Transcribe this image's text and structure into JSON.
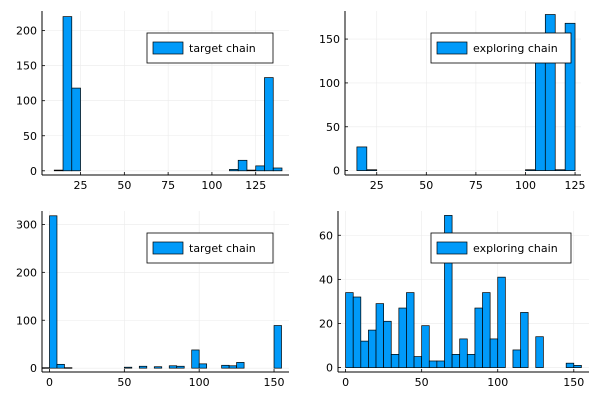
{
  "colors": {
    "bar_fill": "#009af9",
    "bar_stroke": "#000000",
    "grid": "#ebebeb",
    "axis": "#000000"
  },
  "chart_data": [
    {
      "type": "bar",
      "title": "",
      "xlabel": "",
      "ylabel": "",
      "legend": {
        "entries": [
          "target chain"
        ],
        "placement": "top-right"
      },
      "grid": true,
      "xlim": [
        3,
        144
      ],
      "ylim": [
        -6,
        228
      ],
      "xticks": [
        25,
        50,
        75,
        100,
        125
      ],
      "yticks": [
        0,
        50,
        100,
        150,
        200
      ],
      "bin_width": 5,
      "bins": [
        {
          "x0": 10,
          "x1": 15,
          "v": 1
        },
        {
          "x0": 15,
          "x1": 20,
          "v": 220
        },
        {
          "x0": 20,
          "x1": 25,
          "v": 118
        },
        {
          "x0": 110,
          "x1": 115,
          "v": 2
        },
        {
          "x0": 115,
          "x1": 120,
          "v": 15
        },
        {
          "x0": 120,
          "x1": 125,
          "v": 1
        },
        {
          "x0": 125,
          "x1": 130,
          "v": 7
        },
        {
          "x0": 130,
          "x1": 135,
          "v": 133
        },
        {
          "x0": 135,
          "x1": 140,
          "v": 4
        }
      ]
    },
    {
      "type": "bar",
      "title": "",
      "xlabel": "",
      "ylabel": "",
      "legend": {
        "entries": [
          "exploring chain"
        ],
        "placement": "top-right"
      },
      "grid": true,
      "xlim": [
        9,
        128
      ],
      "ylim": [
        -5,
        182
      ],
      "xticks": [
        25,
        50,
        75,
        100,
        125
      ],
      "yticks": [
        0,
        50,
        100,
        150
      ],
      "bin_width": 5,
      "bins": [
        {
          "x0": 15,
          "x1": 20,
          "v": 27
        },
        {
          "x0": 20,
          "x1": 25,
          "v": 1
        },
        {
          "x0": 100,
          "x1": 105,
          "v": 1
        },
        {
          "x0": 105,
          "x1": 110,
          "v": 148
        },
        {
          "x0": 110,
          "x1": 115,
          "v": 178
        },
        {
          "x0": 115,
          "x1": 120,
          "v": 1
        },
        {
          "x0": 120,
          "x1": 125,
          "v": 168
        }
      ]
    },
    {
      "type": "bar",
      "title": "",
      "xlabel": "",
      "ylabel": "",
      "legend": {
        "entries": [
          "target chain"
        ],
        "placement": "top-right"
      },
      "grid": true,
      "xlim": [
        -5,
        160
      ],
      "ylim": [
        -8,
        328
      ],
      "xticks": [
        0,
        50,
        100,
        150
      ],
      "yticks": [
        0,
        100,
        200,
        300
      ],
      "bin_width": 5,
      "bins": [
        {
          "x0": -5,
          "x1": 0,
          "v": 1
        },
        {
          "x0": 0,
          "x1": 5,
          "v": 318
        },
        {
          "x0": 5,
          "x1": 10,
          "v": 8
        },
        {
          "x0": 10,
          "x1": 15,
          "v": 1
        },
        {
          "x0": 50,
          "x1": 55,
          "v": 2
        },
        {
          "x0": 60,
          "x1": 65,
          "v": 4
        },
        {
          "x0": 70,
          "x1": 75,
          "v": 3
        },
        {
          "x0": 80,
          "x1": 85,
          "v": 5
        },
        {
          "x0": 85,
          "x1": 90,
          "v": 4
        },
        {
          "x0": 95,
          "x1": 100,
          "v": 38
        },
        {
          "x0": 100,
          "x1": 105,
          "v": 9
        },
        {
          "x0": 115,
          "x1": 120,
          "v": 6
        },
        {
          "x0": 120,
          "x1": 125,
          "v": 5
        },
        {
          "x0": 125,
          "x1": 130,
          "v": 12
        },
        {
          "x0": 150,
          "x1": 155,
          "v": 89
        }
      ]
    },
    {
      "type": "bar",
      "title": "",
      "xlabel": "",
      "ylabel": "",
      "legend": {
        "entries": [
          "exploring chain"
        ],
        "placement": "top-right"
      },
      "grid": true,
      "xlim": [
        -5,
        160
      ],
      "ylim": [
        -2,
        71
      ],
      "xticks": [
        0,
        50,
        100,
        150
      ],
      "yticks": [
        0,
        20,
        40,
        60
      ],
      "bin_width": 5,
      "bins": [
        {
          "x0": 0,
          "x1": 5,
          "v": 34
        },
        {
          "x0": 5,
          "x1": 10,
          "v": 32
        },
        {
          "x0": 10,
          "x1": 15,
          "v": 12
        },
        {
          "x0": 15,
          "x1": 20,
          "v": 17
        },
        {
          "x0": 20,
          "x1": 25,
          "v": 29
        },
        {
          "x0": 25,
          "x1": 30,
          "v": 21
        },
        {
          "x0": 30,
          "x1": 35,
          "v": 6
        },
        {
          "x0": 35,
          "x1": 40,
          "v": 27
        },
        {
          "x0": 40,
          "x1": 45,
          "v": 34
        },
        {
          "x0": 45,
          "x1": 50,
          "v": 5
        },
        {
          "x0": 50,
          "x1": 55,
          "v": 19
        },
        {
          "x0": 55,
          "x1": 60,
          "v": 3
        },
        {
          "x0": 60,
          "x1": 65,
          "v": 3
        },
        {
          "x0": 65,
          "x1": 70,
          "v": 69
        },
        {
          "x0": 70,
          "x1": 75,
          "v": 6
        },
        {
          "x0": 75,
          "x1": 80,
          "v": 13
        },
        {
          "x0": 80,
          "x1": 85,
          "v": 6
        },
        {
          "x0": 85,
          "x1": 90,
          "v": 27
        },
        {
          "x0": 90,
          "x1": 95,
          "v": 34
        },
        {
          "x0": 95,
          "x1": 100,
          "v": 13
        },
        {
          "x0": 100,
          "x1": 105,
          "v": 41
        },
        {
          "x0": 110,
          "x1": 115,
          "v": 8
        },
        {
          "x0": 115,
          "x1": 120,
          "v": 25
        },
        {
          "x0": 125,
          "x1": 130,
          "v": 14
        },
        {
          "x0": 145,
          "x1": 150,
          "v": 2
        },
        {
          "x0": 150,
          "x1": 155,
          "v": 1
        }
      ]
    }
  ]
}
